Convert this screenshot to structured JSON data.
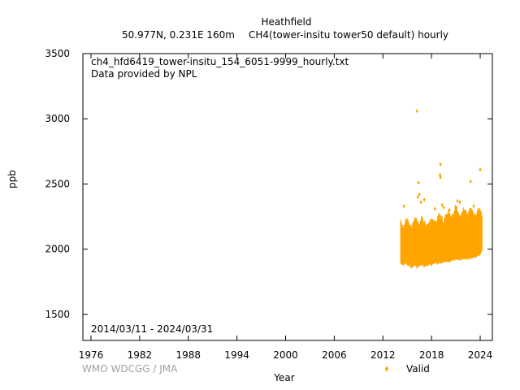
{
  "chart_data": {
    "type": "scatter",
    "title": "Heathfield",
    "subtitle_location": "50.977N, 0.231E 160m",
    "subtitle_variable": "CH4(tower-insitu tower50 default) hourly",
    "file_label": "ch4_hfd6419_tower-insitu_154_6051-9999_hourly.txt",
    "provider_label": "Data provided by NPL",
    "period_label": "2014/03/11 - 2024/03/31",
    "xlabel": "Year",
    "ylabel": "ppb",
    "xlim": [
      1975,
      2025.5
    ],
    "ylim": [
      1300,
      3500
    ],
    "x_ticks": [
      "1976",
      "1982",
      "1988",
      "1994",
      "2000",
      "2006",
      "2012",
      "2018",
      "2024"
    ],
    "y_ticks": [
      "1500",
      "2000",
      "2500",
      "3000",
      "3500"
    ],
    "legend": [
      {
        "label": "Valid",
        "color": "#ffa500"
      }
    ],
    "legend_position": "bottom-right",
    "credit": "WMO WDCGG / JMA",
    "series": [
      {
        "name": "Valid",
        "color": "#ffa500",
        "band": [
          [
            2014.2,
            1890,
            2220
          ],
          [
            2014.5,
            1880,
            2150
          ],
          [
            2014.8,
            1900,
            2200
          ],
          [
            2015.0,
            1880,
            2230
          ],
          [
            2015.3,
            1870,
            2180
          ],
          [
            2015.6,
            1860,
            2160
          ],
          [
            2015.9,
            1880,
            2230
          ],
          [
            2016.2,
            1860,
            2210
          ],
          [
            2016.5,
            1870,
            2180
          ],
          [
            2016.8,
            1880,
            2240
          ],
          [
            2017.1,
            1870,
            2200
          ],
          [
            2017.4,
            1880,
            2170
          ],
          [
            2017.7,
            1880,
            2200
          ],
          [
            2018.0,
            1880,
            2240
          ],
          [
            2018.3,
            1890,
            2200
          ],
          [
            2018.6,
            1890,
            2190
          ],
          [
            2018.9,
            1890,
            2260
          ],
          [
            2019.2,
            1900,
            2240
          ],
          [
            2019.5,
            1900,
            2200
          ],
          [
            2019.8,
            1910,
            2260
          ],
          [
            2020.1,
            1910,
            2280
          ],
          [
            2020.4,
            1910,
            2230
          ],
          [
            2020.7,
            1920,
            2260
          ],
          [
            2021.0,
            1920,
            2330
          ],
          [
            2021.3,
            1920,
            2260
          ],
          [
            2021.6,
            1920,
            2240
          ],
          [
            2021.9,
            1930,
            2300
          ],
          [
            2022.2,
            1930,
            2290
          ],
          [
            2022.5,
            1930,
            2250
          ],
          [
            2022.8,
            1930,
            2310
          ],
          [
            2023.1,
            1940,
            2280
          ],
          [
            2023.4,
            1940,
            2260
          ],
          [
            2023.7,
            1950,
            2290
          ],
          [
            2024.0,
            1960,
            2300
          ],
          [
            2024.25,
            1990,
            2250
          ]
        ],
        "outliers": [
          [
            2016.2,
            3060
          ],
          [
            2019.1,
            2650
          ],
          [
            2019.05,
            2570
          ],
          [
            2019.1,
            2550
          ],
          [
            2024.0,
            2610
          ],
          [
            2022.8,
            2520
          ],
          [
            2016.4,
            2510
          ],
          [
            2016.5,
            2420
          ],
          [
            2016.3,
            2400
          ],
          [
            2017.1,
            2380
          ],
          [
            2016.7,
            2360
          ],
          [
            2014.6,
            2330
          ],
          [
            2021.2,
            2370
          ],
          [
            2021.5,
            2360
          ],
          [
            2019.3,
            2340
          ],
          [
            2019.5,
            2320
          ],
          [
            2018.4,
            2310
          ],
          [
            2023.2,
            2330
          ],
          [
            2020.2,
            2300
          ]
        ]
      }
    ]
  }
}
